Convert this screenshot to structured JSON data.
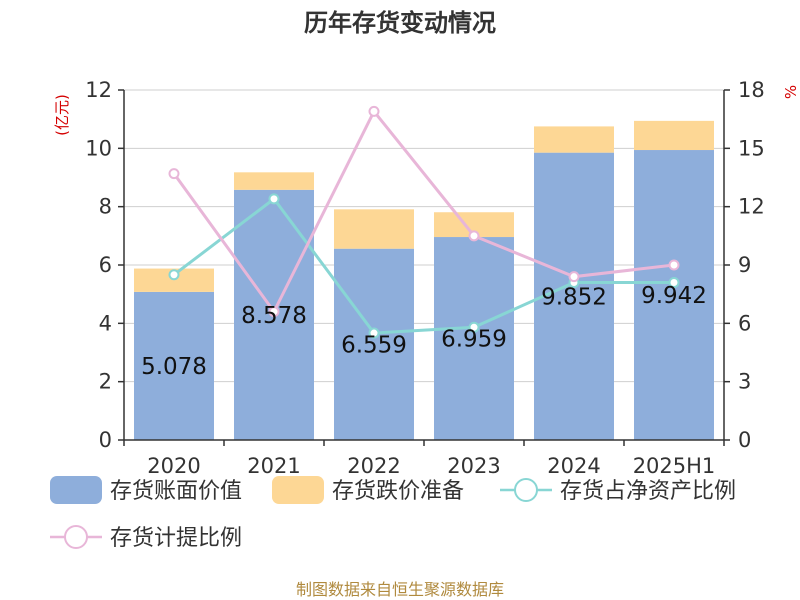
{
  "chart_data": {
    "type": "bar",
    "title": "历年存货变动情况",
    "categories": [
      "2020",
      "2021",
      "2022",
      "2023",
      "2024",
      "2025H1"
    ],
    "y_left": {
      "unit": "(亿元)",
      "ylim": [
        0,
        12
      ],
      "ticks": [
        0,
        2,
        4,
        6,
        8,
        10,
        12
      ]
    },
    "y_right": {
      "unit": "%",
      "ylim": [
        0,
        18
      ],
      "ticks": [
        0,
        3,
        6,
        9,
        12,
        15,
        18
      ]
    },
    "series": [
      {
        "name": "存货账面价值",
        "kind": "bar",
        "axis": "left",
        "stack": "a",
        "color": "#8eaedb",
        "values": [
          5.078,
          8.578,
          6.559,
          6.959,
          9.852,
          9.942
        ],
        "labels": [
          "5.078",
          "8.578",
          "6.559",
          "6.959",
          "9.852",
          "9.942"
        ]
      },
      {
        "name": "存货跌价准备",
        "kind": "bar",
        "axis": "left",
        "stack": "a",
        "color": "#fdd795",
        "values": [
          0.8,
          0.6,
          1.35,
          0.85,
          0.9,
          1.0
        ]
      },
      {
        "name": "存货占净资产比例",
        "kind": "line",
        "axis": "right",
        "color": "#88d6d4",
        "values": [
          8.5,
          12.4,
          5.5,
          5.8,
          8.1,
          8.1
        ]
      },
      {
        "name": "存货计提比例",
        "kind": "line",
        "axis": "right",
        "color": "#e8b6d8",
        "values": [
          13.7,
          6.6,
          16.9,
          10.5,
          8.4,
          9.0
        ]
      }
    ],
    "grid": true,
    "legend": "bottom"
  },
  "footer": {
    "source": "制图数据来自恒生聚源数据库"
  }
}
